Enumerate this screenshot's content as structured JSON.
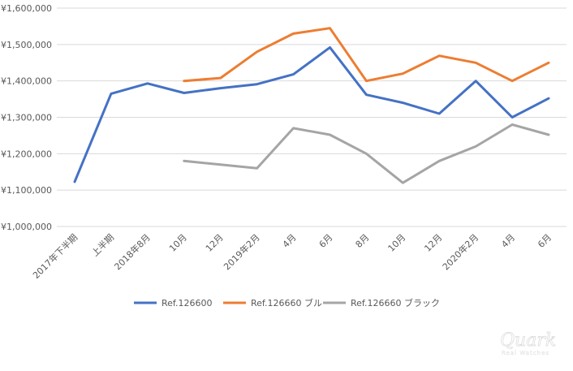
{
  "chart_data": {
    "type": "line",
    "title": "",
    "xlabel": "",
    "ylabel": "",
    "ylim": [
      1000000,
      1600000
    ],
    "y_tick_step": 100000,
    "y_tick_labels": [
      "¥1,000,000",
      "¥1,100,000",
      "¥1,200,000",
      "¥1,300,000",
      "¥1,400,000",
      "¥1,500,000",
      "¥1,600,000"
    ],
    "grid": true,
    "legend_position": "bottom",
    "categories": [
      "2017年下半期",
      "上半期",
      "2018年8月",
      "10月",
      "12月",
      "2019年2月",
      "4月",
      "6月",
      "8月",
      "10月",
      "12月",
      "2020年2月",
      "4月",
      "6月"
    ],
    "series": [
      {
        "name": "Ref.126600",
        "color": "#4472c4",
        "values": [
          1123000,
          1365000,
          1393000,
          1367000,
          1380000,
          1391000,
          1418000,
          1492000,
          1362000,
          1340000,
          1310000,
          1400000,
          1300000,
          1352000
        ]
      },
      {
        "name": "Ref.126660 ブルー",
        "color": "#ed7d31",
        "values": [
          null,
          null,
          null,
          1400000,
          1408000,
          1480000,
          1530000,
          1545000,
          1400000,
          1420000,
          1469000,
          1450000,
          1400000,
          1450000
        ]
      },
      {
        "name": "Ref.126660 ブラック",
        "color": "#a5a5a5",
        "values": [
          null,
          null,
          null,
          1180000,
          1170000,
          1160000,
          1270000,
          1252000,
          1200000,
          1120000,
          1180000,
          1220000,
          1280000,
          1252000
        ]
      }
    ]
  },
  "watermark": {
    "main": "Quark",
    "sub": "Real Watches"
  },
  "colors": {
    "grid": "#d9d9d9",
    "text": "#595959"
  }
}
